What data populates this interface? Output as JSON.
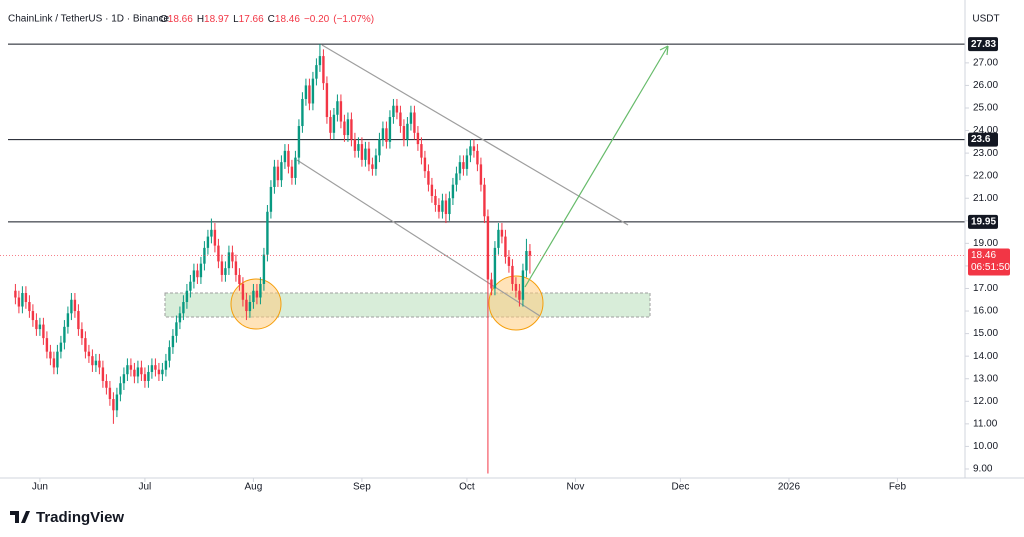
{
  "chart_data": {
    "type": "candlestick",
    "title": "ChainLink / TetherUS · 1D · Binance",
    "ohlc_header": [
      {
        "key": "O",
        "value": 18.66
      },
      {
        "key": "H",
        "value": 18.97
      },
      {
        "key": "L",
        "value": 17.66
      },
      {
        "key": "C",
        "value": 18.46
      }
    ],
    "change": {
      "value": -0.2,
      "label": "−0.20"
    },
    "change_pct": {
      "value": -1.07,
      "label": "(−1.07%)"
    },
    "currency": "USDT",
    "countdown": "06:51:50",
    "brand": "TradingView",
    "up_color": "#089981",
    "down_color": "#f23645",
    "xlim": [
      -4.4,
      271.3
    ],
    "xticks": [
      {
        "value": 7,
        "label": "Jun"
      },
      {
        "value": 37,
        "label": "Jul"
      },
      {
        "value": 68,
        "label": "Aug"
      },
      {
        "value": 99,
        "label": "Sep"
      },
      {
        "value": 129,
        "label": "Oct"
      },
      {
        "value": 160,
        "label": "Nov"
      },
      {
        "value": 190,
        "label": "Dec"
      },
      {
        "value": 221,
        "label": "2026"
      },
      {
        "value": 252,
        "label": "Feb"
      }
    ],
    "ylim": [
      8.6,
      28.9
    ],
    "yticks": [
      {
        "value": 9,
        "label": "9.00"
      },
      {
        "value": 10,
        "label": "10.00"
      },
      {
        "value": 11,
        "label": "11.00"
      },
      {
        "value": 12,
        "label": "12.00"
      },
      {
        "value": 13,
        "label": "13.00"
      },
      {
        "value": 14,
        "label": "14.00"
      },
      {
        "value": 15,
        "label": "15.00"
      },
      {
        "value": 16,
        "label": "16.00"
      },
      {
        "value": 17,
        "label": "17.00"
      },
      {
        "value": 18,
        "label": "18.00"
      },
      {
        "value": 19,
        "label": "19.00"
      },
      {
        "value": 20,
        "label": "20.00"
      },
      {
        "value": 21,
        "label": "21.00"
      },
      {
        "value": 22,
        "label": "22.00"
      },
      {
        "value": 23,
        "label": "23.00"
      },
      {
        "value": 24,
        "label": "24.00"
      },
      {
        "value": 25,
        "label": "25.00"
      },
      {
        "value": 26,
        "label": "26.00"
      },
      {
        "value": 27,
        "label": "27.00"
      }
    ],
    "levels": [
      27.83,
      23.6,
      19.95
    ],
    "x": [
      0,
      1,
      2,
      3,
      4,
      5,
      6,
      7,
      8,
      9,
      10,
      11,
      12,
      13,
      14,
      15,
      16,
      17,
      18,
      19,
      20,
      21,
      22,
      23,
      24,
      25,
      26,
      27,
      28,
      29,
      30,
      31,
      32,
      33,
      34,
      35,
      36,
      37,
      38,
      39,
      40,
      41,
      42,
      43,
      44,
      45,
      46,
      47,
      48,
      49,
      50,
      51,
      52,
      53,
      54,
      55,
      56,
      57,
      58,
      59,
      60,
      61,
      62,
      63,
      64,
      65,
      66,
      67,
      68,
      69,
      70,
      71,
      72,
      73,
      74,
      75,
      76,
      77,
      78,
      79,
      80,
      81,
      82,
      83,
      84,
      85,
      86,
      87,
      88,
      89,
      90,
      91,
      92,
      93,
      94,
      95,
      96,
      97,
      98,
      99,
      100,
      101,
      102,
      103,
      104,
      105,
      106,
      107,
      108,
      109,
      110,
      111,
      112,
      113,
      114,
      115,
      116,
      117,
      118,
      119,
      120,
      121,
      122,
      123,
      124,
      125,
      126,
      127,
      128,
      129,
      130,
      131,
      132,
      133,
      134,
      135,
      136,
      137,
      138,
      139,
      140,
      141,
      142,
      143,
      144,
      145,
      146,
      147
    ],
    "open": [
      16.9,
      16.6,
      16.2,
      16.8,
      16.4,
      16.0,
      15.6,
      15.2,
      15.4,
      14.8,
      14.2,
      13.9,
      13.5,
      14.2,
      14.6,
      15.3,
      15.9,
      16.5,
      16.0,
      15.2,
      14.8,
      14.2,
      14.0,
      13.6,
      13.8,
      13.5,
      12.9,
      12.6,
      12.1,
      11.6,
      12.3,
      12.8,
      13.2,
      13.6,
      13.4,
      13.1,
      13.5,
      13.2,
      12.9,
      13.3,
      13.6,
      13.4,
      13.2,
      13.4,
      13.8,
      14.4,
      14.9,
      15.5,
      15.9,
      16.4,
      16.9,
      17.3,
      17.8,
      17.5,
      18.1,
      18.8,
      19.3,
      19.6,
      18.9,
      18.2,
      17.6,
      17.9,
      18.6,
      18.2,
      17.6,
      17.2,
      16.5,
      16.0,
      16.4,
      16.9,
      16.6,
      17.2,
      18.5,
      20.4,
      21.5,
      22.4,
      21.8,
      22.6,
      23.1,
      22.4,
      21.9,
      22.8,
      24.2,
      25.4,
      26.0,
      25.2,
      26.3,
      26.9,
      27.3,
      26.1,
      24.6,
      23.9,
      24.7,
      25.3,
      24.4,
      23.8,
      24.5,
      23.6,
      23.1,
      23.4,
      22.7,
      23.2,
      22.5,
      22.3,
      22.9,
      23.6,
      24.1,
      23.5,
      24.6,
      25.1,
      24.8,
      24.2,
      23.6,
      24.3,
      24.8,
      23.9,
      23.4,
      22.8,
      22.2,
      21.6,
      21.1,
      20.7,
      20.4,
      20.9,
      20.3,
      21.0,
      21.6,
      22.1,
      22.6,
      22.3,
      22.9,
      23.3,
      23.1,
      22.5,
      21.6,
      20.2,
      17.4,
      17.0,
      18.8,
      19.6,
      19.3,
      18.4,
      18.0,
      17.2,
      16.9,
      16.5,
      17.8,
      18.66
    ],
    "high": [
      17.2,
      16.9,
      17.1,
      17.1,
      16.7,
      16.3,
      15.9,
      15.7,
      15.7,
      15.1,
      14.5,
      14.2,
      14.5,
      14.9,
      15.6,
      16.2,
      16.8,
      16.8,
      16.3,
      15.5,
      15.1,
      14.5,
      14.3,
      14.1,
      14.1,
      13.8,
      13.2,
      12.9,
      12.4,
      12.6,
      13.1,
      13.5,
      13.9,
      13.9,
      13.7,
      13.8,
      13.8,
      13.5,
      13.6,
      13.9,
      13.9,
      13.7,
      13.7,
      14.1,
      14.7,
      15.2,
      15.8,
      16.2,
      16.7,
      17.2,
      17.6,
      18.1,
      18.1,
      18.4,
      19.1,
      19.6,
      20.1,
      19.9,
      19.2,
      18.5,
      18.2,
      18.9,
      18.9,
      18.5,
      17.9,
      17.5,
      16.8,
      16.7,
      17.2,
      17.2,
      17.5,
      18.8,
      20.7,
      21.8,
      22.7,
      22.7,
      22.9,
      23.4,
      23.4,
      22.7,
      23.1,
      24.5,
      25.7,
      26.3,
      26.3,
      26.6,
      27.2,
      27.83,
      27.6,
      26.4,
      24.9,
      25.0,
      25.6,
      25.6,
      24.7,
      24.8,
      24.8,
      23.9,
      23.7,
      23.7,
      23.5,
      23.5,
      22.8,
      23.2,
      23.9,
      24.4,
      24.4,
      24.9,
      25.4,
      25.4,
      25.1,
      24.5,
      24.6,
      25.1,
      25.1,
      24.2,
      23.7,
      23.1,
      22.5,
      21.9,
      21.4,
      21.0,
      21.2,
      21.2,
      21.3,
      21.9,
      22.4,
      22.9,
      22.9,
      23.2,
      23.6,
      23.6,
      23.4,
      22.8,
      21.9,
      20.5,
      17.7,
      19.1,
      19.9,
      19.9,
      19.6,
      18.7,
      18.3,
      17.5,
      17.2,
      18.1,
      19.2,
      18.97
    ],
    "low": [
      16.3,
      15.9,
      15.9,
      16.1,
      15.7,
      15.3,
      14.9,
      14.9,
      14.5,
      13.9,
      13.6,
      13.2,
      13.2,
      13.9,
      14.3,
      15.0,
      15.6,
      15.7,
      14.9,
      14.5,
      13.9,
      13.7,
      13.3,
      13.3,
      13.2,
      12.6,
      12.3,
      11.8,
      11.0,
      11.3,
      12.0,
      12.5,
      12.9,
      13.1,
      12.8,
      12.8,
      12.9,
      12.6,
      12.6,
      13.0,
      13.1,
      12.9,
      12.9,
      13.1,
      13.5,
      14.1,
      14.6,
      15.2,
      15.6,
      16.1,
      16.6,
      17.0,
      17.2,
      17.2,
      17.8,
      18.5,
      19.0,
      18.6,
      17.9,
      17.3,
      17.3,
      17.6,
      17.9,
      17.3,
      16.9,
      16.2,
      15.6,
      15.7,
      16.1,
      16.3,
      16.3,
      16.9,
      18.2,
      20.1,
      21.2,
      21.5,
      21.5,
      22.3,
      22.1,
      21.6,
      21.6,
      22.5,
      23.9,
      25.1,
      24.9,
      24.9,
      26.0,
      26.6,
      25.8,
      24.3,
      23.6,
      23.6,
      24.4,
      24.1,
      23.5,
      23.5,
      23.3,
      22.8,
      22.8,
      22.4,
      22.4,
      22.2,
      22.0,
      22.0,
      22.6,
      23.3,
      23.2,
      23.2,
      24.3,
      24.5,
      23.9,
      23.3,
      23.3,
      24.0,
      23.6,
      23.1,
      22.5,
      21.9,
      21.3,
      20.8,
      20.4,
      20.1,
      20.1,
      19.9,
      20.0,
      20.7,
      21.3,
      21.8,
      22.0,
      22.0,
      22.6,
      22.8,
      22.2,
      21.3,
      19.9,
      8.8,
      16.7,
      16.7,
      18.5,
      19.0,
      18.1,
      17.7,
      16.9,
      16.6,
      16.2,
      16.2,
      17.5,
      17.66
    ],
    "close": [
      16.6,
      16.2,
      16.8,
      16.4,
      16.0,
      15.6,
      15.2,
      15.4,
      14.8,
      14.2,
      13.9,
      13.5,
      14.2,
      14.6,
      15.3,
      15.9,
      16.5,
      16.0,
      15.2,
      14.8,
      14.2,
      14.0,
      13.6,
      13.8,
      13.5,
      12.9,
      12.6,
      12.1,
      11.6,
      12.3,
      12.8,
      13.2,
      13.6,
      13.4,
      13.1,
      13.5,
      13.2,
      12.9,
      13.3,
      13.6,
      13.4,
      13.2,
      13.4,
      13.8,
      14.4,
      14.9,
      15.5,
      15.9,
      16.4,
      16.9,
      17.3,
      17.8,
      17.5,
      18.1,
      18.8,
      19.3,
      19.6,
      18.9,
      18.2,
      17.6,
      17.9,
      18.6,
      18.2,
      17.6,
      17.2,
      16.5,
      16.0,
      16.4,
      16.9,
      16.6,
      17.2,
      18.5,
      20.4,
      21.5,
      22.4,
      21.8,
      22.6,
      23.1,
      22.4,
      21.9,
      22.8,
      24.2,
      25.4,
      26.0,
      25.2,
      26.3,
      26.9,
      27.3,
      26.1,
      24.6,
      23.9,
      24.7,
      25.3,
      24.4,
      23.8,
      24.5,
      23.6,
      23.1,
      23.4,
      22.7,
      23.2,
      22.5,
      22.3,
      22.9,
      23.6,
      24.1,
      23.5,
      24.6,
      25.1,
      24.8,
      24.2,
      23.6,
      24.3,
      24.8,
      23.9,
      23.4,
      22.8,
      22.2,
      21.6,
      21.1,
      20.7,
      20.4,
      20.9,
      20.3,
      21.0,
      21.6,
      22.1,
      22.6,
      22.3,
      22.9,
      23.3,
      23.1,
      22.5,
      21.6,
      20.2,
      17.4,
      17.0,
      18.8,
      19.6,
      19.3,
      18.4,
      18.0,
      17.2,
      16.9,
      16.5,
      17.8,
      18.66,
      18.46
    ]
  }
}
